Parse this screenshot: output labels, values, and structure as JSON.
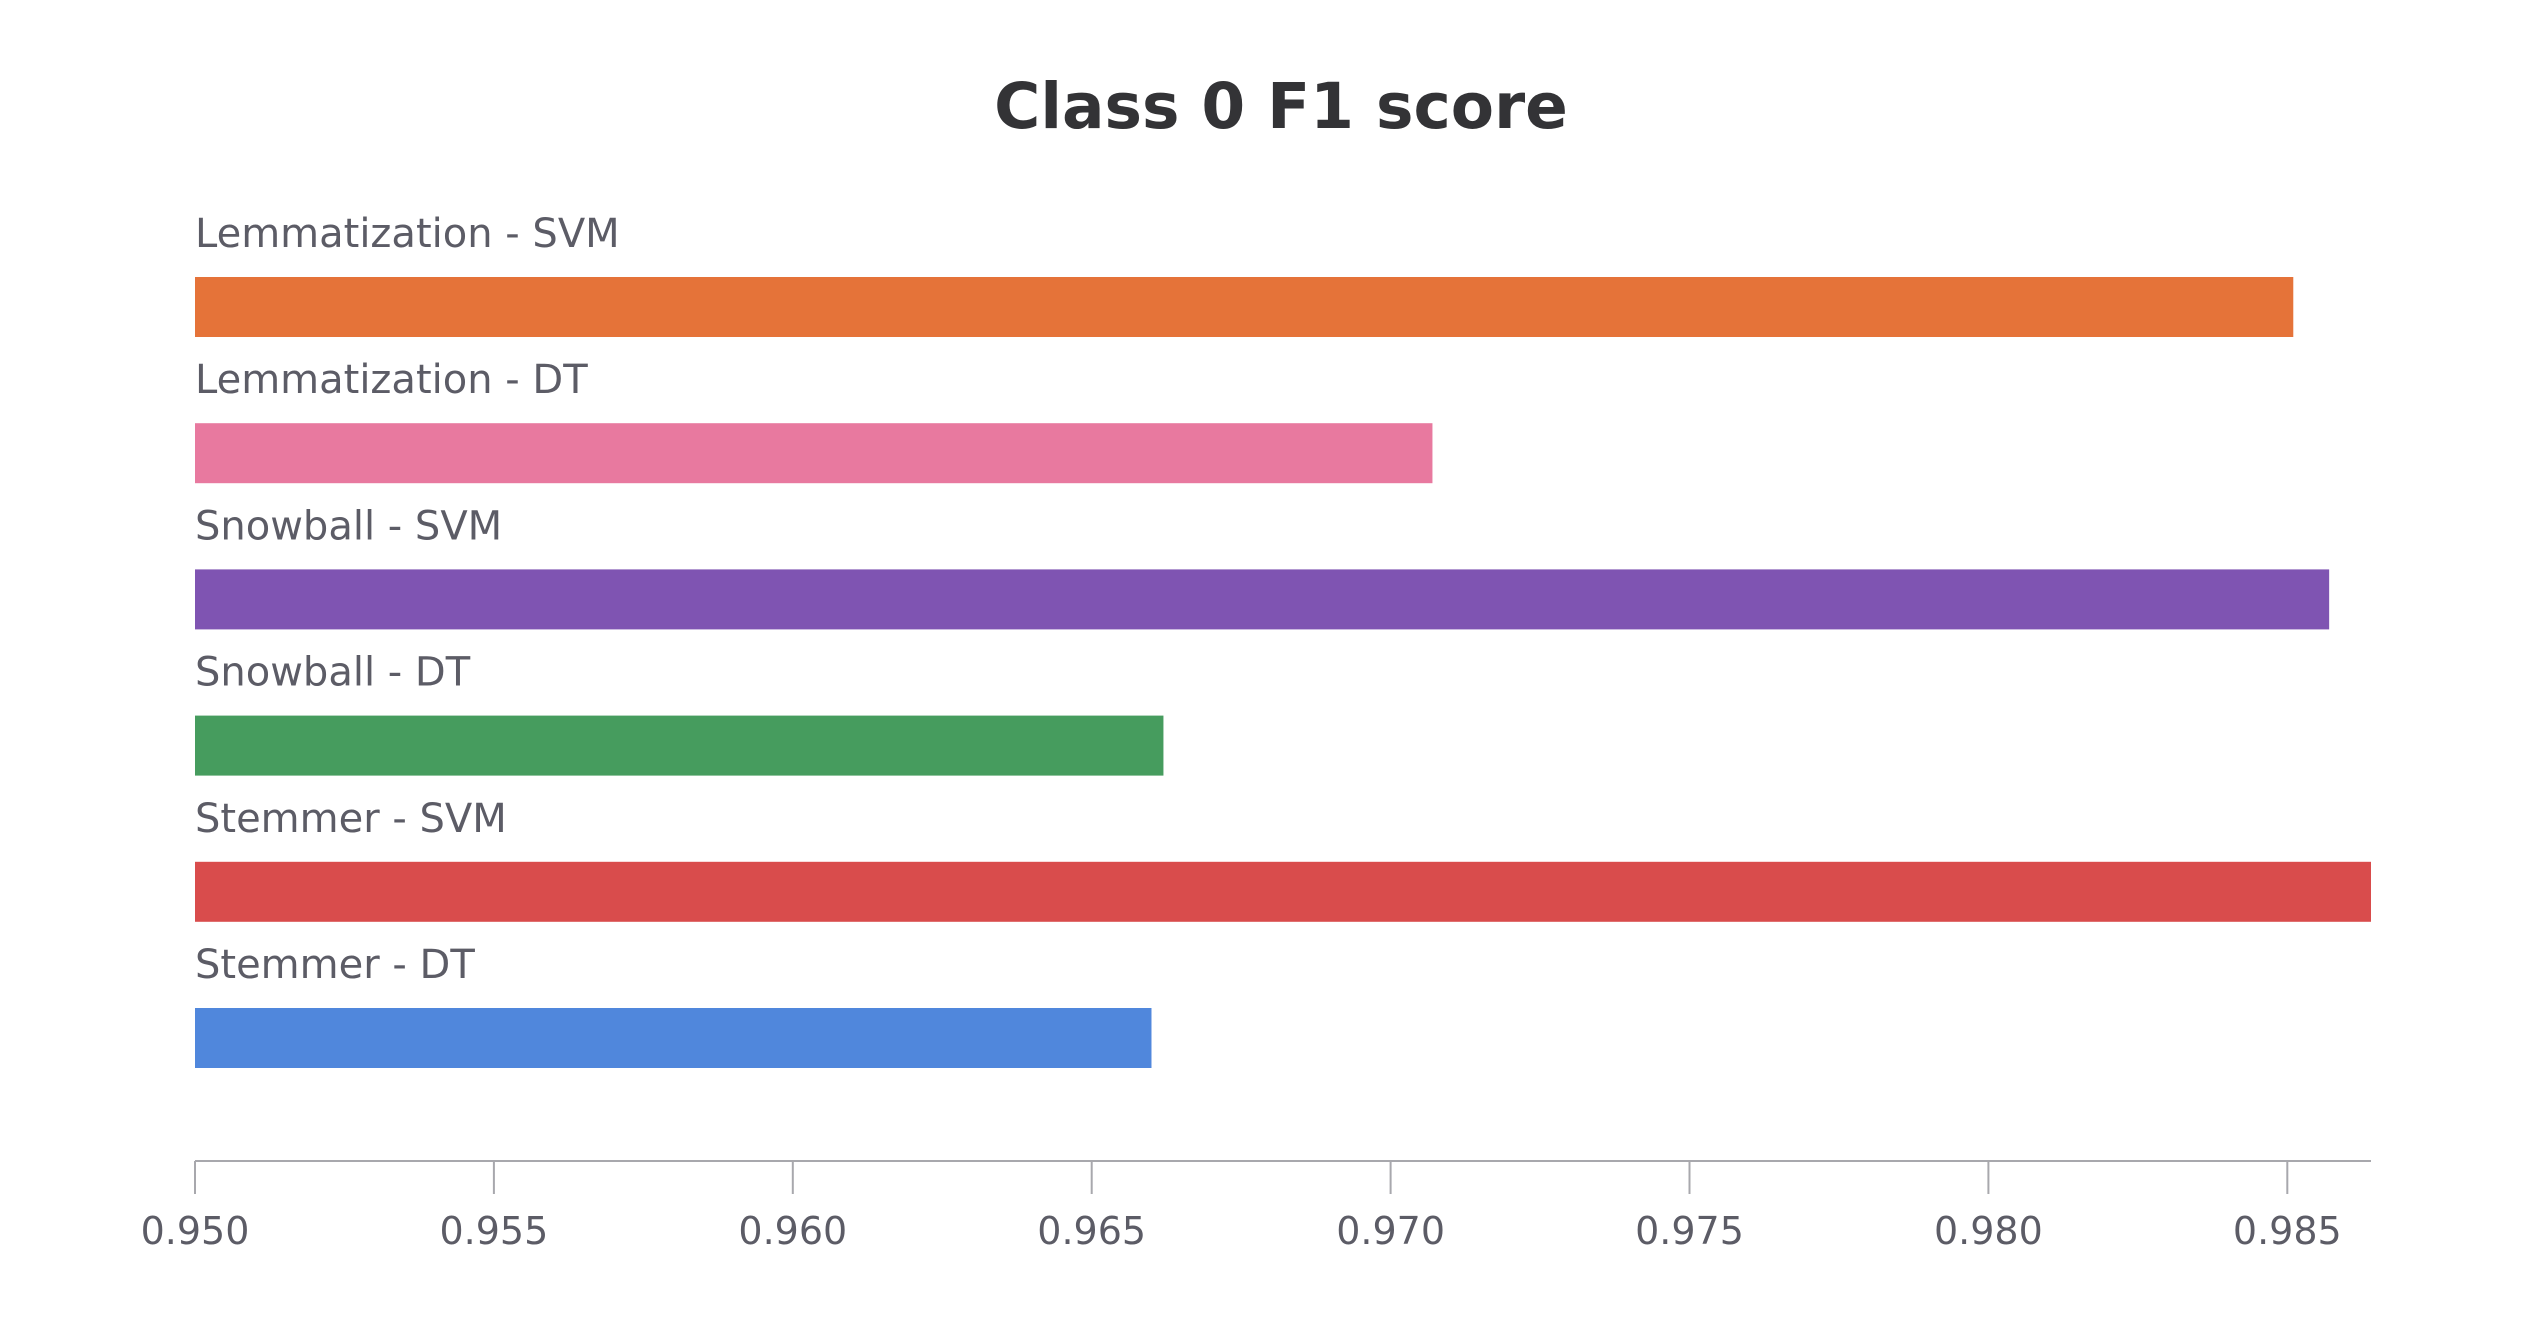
{
  "chart_data": {
    "type": "bar",
    "orientation": "horizontal",
    "title": "Class 0 F1 score",
    "xlabel": "",
    "ylabel": "",
    "xlim": [
      0.95,
      0.9864
    ],
    "grid": false,
    "legend": "none",
    "x_ticks": [
      0.95,
      0.955,
      0.96,
      0.965,
      0.97,
      0.975,
      0.98,
      0.985
    ],
    "x_tick_labels": [
      "0.950",
      "0.955",
      "0.960",
      "0.965",
      "0.970",
      "0.975",
      "0.980",
      "0.985"
    ],
    "bars": [
      {
        "label": "Lemmatization - SVM",
        "value": 0.9851,
        "color": "#e57339"
      },
      {
        "label": "Lemmatization - DT",
        "value": 0.9707,
        "color": "#e8799f"
      },
      {
        "label": "Snowball - SVM",
        "value": 0.9857,
        "color": "#7f54b2"
      },
      {
        "label": "Snowball - DT",
        "value": 0.9662,
        "color": "#469c5e"
      },
      {
        "label": "Stemmer - SVM",
        "value": 0.9864,
        "color": "#d94c4c"
      },
      {
        "label": "Stemmer - DT",
        "value": 0.966,
        "color": "#5087dc"
      }
    ]
  }
}
